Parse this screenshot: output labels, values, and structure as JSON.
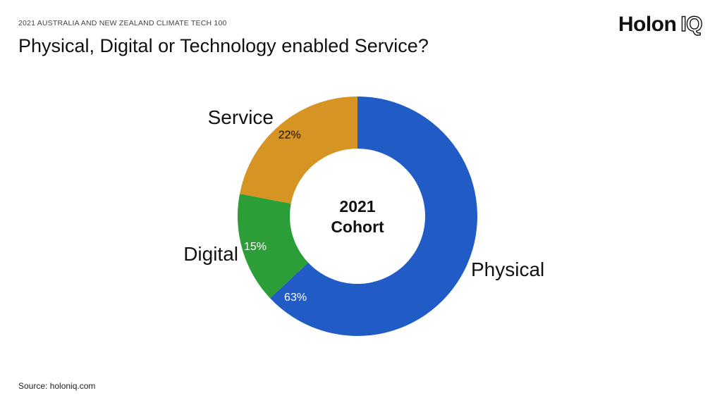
{
  "header": {
    "eyebrow": "2021 AUSTRALIA AND NEW ZEALAND CLIMATE TECH 100",
    "logo_word": "Holon",
    "logo_mark": "IQ"
  },
  "footer": {
    "source": "Source: holoniq.com"
  },
  "chart_data": {
    "type": "pie",
    "title": "Physical, Digital or Technology enabled Service?",
    "center_label": [
      "2021",
      "Cohort"
    ],
    "slices": [
      {
        "label": "Physical",
        "value": 63,
        "value_label": "63%",
        "color": "#215cc6",
        "value_color": "#ffffff"
      },
      {
        "label": "Digital",
        "value": 15,
        "value_label": "15%",
        "color": "#2b9e37",
        "value_color": "#ffffff"
      },
      {
        "label": "Service",
        "value": 22,
        "value_label": "22%",
        "color": "#d69422",
        "value_color": "#111111"
      }
    ]
  }
}
